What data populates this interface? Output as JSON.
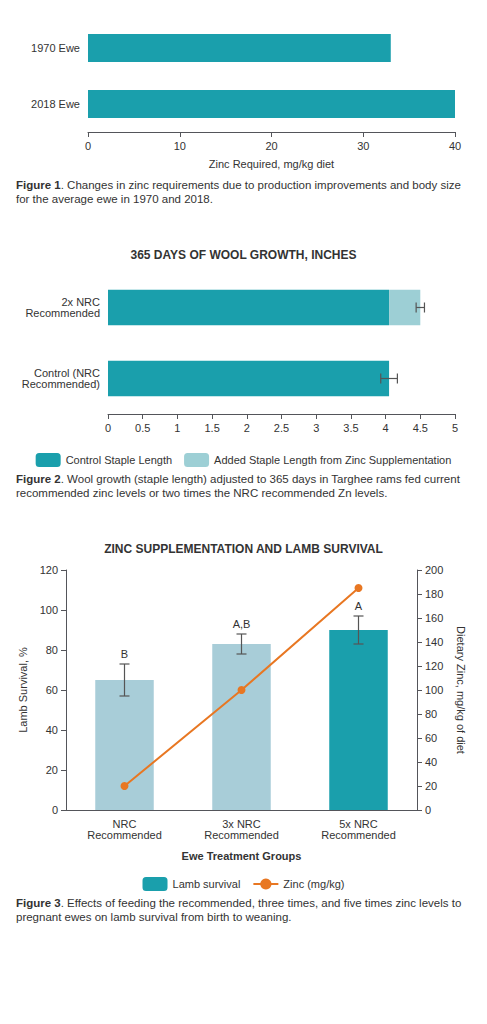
{
  "chart_data": [
    {
      "type": "bar",
      "orientation": "horizontal",
      "categories": [
        "1970 Ewe",
        "2018 Ewe"
      ],
      "values": [
        33,
        40
      ],
      "color": "#1a9fac",
      "xlabel": "Zinc Required, mg/kg diet",
      "xlim": [
        0,
        40
      ],
      "xticks": [
        0,
        10,
        20,
        30,
        40
      ],
      "grid": false,
      "caption": "Figure 1. Changes in zinc requirements due to production improvements and body size for the average ewe in 1970 and 2018."
    },
    {
      "type": "bar",
      "orientation": "horizontal",
      "stacked": true,
      "title": "365 DAYS OF WOOL GROWTH, INCHES",
      "categories": [
        "2x NRC\nRecommended",
        "Control (NRC\nRecommended)"
      ],
      "series": [
        {
          "name": "Control Staple Length",
          "color": "#1a9fac",
          "values": [
            4.05,
            4.05
          ]
        },
        {
          "name": "Added Staple Length from Zinc Supplementation",
          "color": "#9dcfd5",
          "values": [
            0.45,
            0.0
          ]
        }
      ],
      "errors": [
        0.06,
        0.12
      ],
      "xlim": [
        0,
        5
      ],
      "xticks": [
        0,
        0.5,
        1,
        1.5,
        2,
        2.5,
        3,
        3.5,
        4,
        4.5,
        5
      ],
      "grid": false,
      "legend": "bottom",
      "caption": "Figure 2. Wool growth (staple length) adjusted to 365 days in Targhee rams fed current recommended zinc levels or two times the NRC recommended Zn levels."
    },
    {
      "type": "bar",
      "title": "ZINC SUPPLEMENTATION AND LAMB SURVIVAL",
      "categories": [
        "NRC\nRecommended",
        "3x NRC\nRecommended",
        "5x NRC\nRecommended"
      ],
      "xlabel": "Ewe Treatment Groups",
      "ylabel": "Lamb Survival, %",
      "y2label": "Dietary Zinc, mg/kg of diet",
      "ylim": [
        0,
        120
      ],
      "yticks": [
        0,
        20,
        40,
        60,
        80,
        100,
        120
      ],
      "y2lim": [
        0,
        200
      ],
      "y2ticks": [
        0,
        20,
        40,
        60,
        80,
        100,
        120,
        140,
        160,
        180,
        200
      ],
      "series": [
        {
          "name": "Lamb survival",
          "type": "bar",
          "color": "#1a9fac",
          "colors": [
            "#a8cdd8",
            "#a8cdd8",
            "#1a9fac"
          ],
          "values": [
            65,
            83,
            90
          ],
          "errors": [
            8,
            5,
            7
          ],
          "annotations": [
            "B",
            "A,B",
            "A"
          ]
        },
        {
          "name": "Zinc (mg/kg)",
          "type": "line",
          "axis": "y2",
          "color": "#e87722",
          "marker": "o",
          "values": [
            20,
            100,
            185
          ]
        }
      ],
      "grid": false,
      "legend": "bottom",
      "caption": "Figure 3. Effects of feeding the recommended, three times, and five times zinc levels to pregnant ewes on lamb survival from birth to weaning."
    }
  ]
}
